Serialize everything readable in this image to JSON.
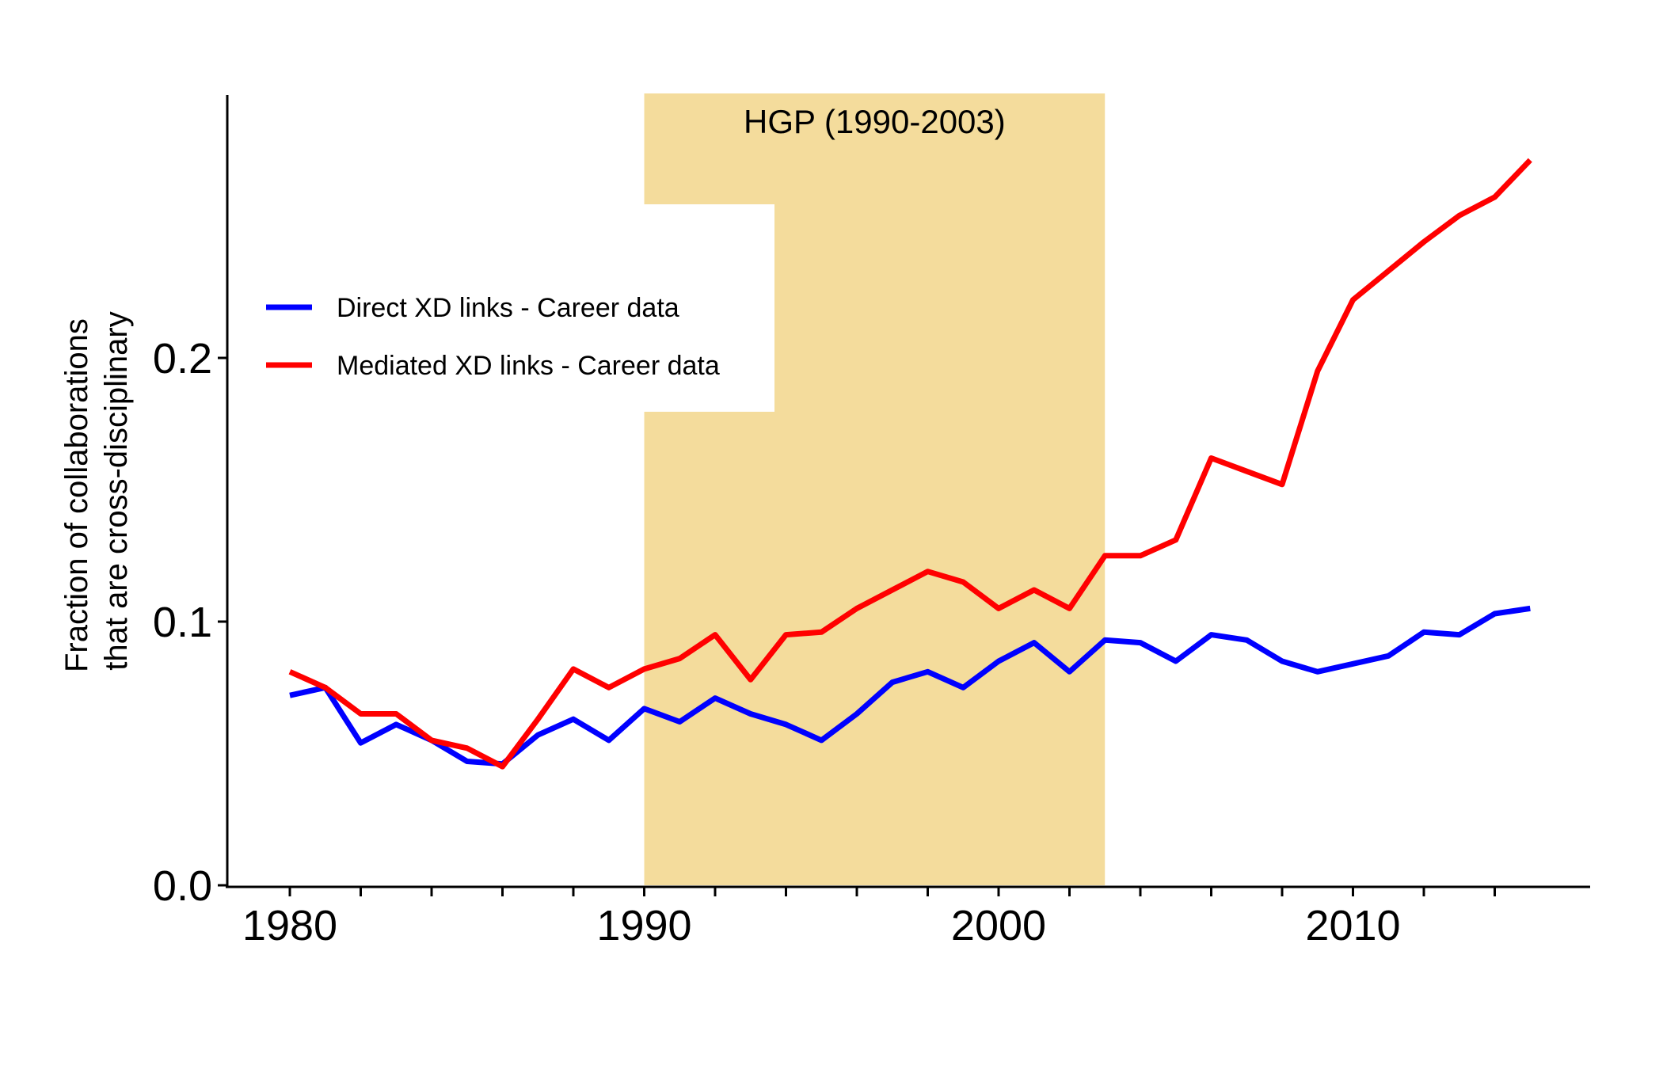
{
  "chart_data": {
    "type": "line",
    "title": "",
    "xlabel": "",
    "ylabel_lines": [
      "Fraction of collaborations",
      "that are cross-disciplinary"
    ],
    "xlim": [
      1978.2,
      2016.7
    ],
    "ylim": [
      0,
      0.3
    ],
    "x_ticks": [
      1980,
      1990,
      2000,
      2010
    ],
    "y_ticks": [
      0.0,
      0.1,
      0.2
    ],
    "y_tick_labels": [
      "0.0",
      "0.1",
      "0.2"
    ],
    "grid": false,
    "legend_position": "left",
    "shaded_region": {
      "x_start": 1990,
      "x_end": 2003,
      "label": "HGP (1990-2003)",
      "color": "#f4dc9c"
    },
    "x": [
      1980,
      1981,
      1982,
      1983,
      1984,
      1985,
      1986,
      1987,
      1988,
      1989,
      1990,
      1991,
      1992,
      1993,
      1994,
      1995,
      1996,
      1997,
      1998,
      1999,
      2000,
      2001,
      2002,
      2003,
      2004,
      2005,
      2006,
      2007,
      2008,
      2009,
      2010,
      2011,
      2012,
      2013,
      2014,
      2015
    ],
    "series": [
      {
        "name": "Direct XD links - Career data",
        "color": "#0000ff",
        "values": [
          0.072,
          0.075,
          0.054,
          0.061,
          0.055,
          0.047,
          0.046,
          0.057,
          0.063,
          0.055,
          0.067,
          0.062,
          0.071,
          0.065,
          0.061,
          0.055,
          0.065,
          0.077,
          0.081,
          0.075,
          0.085,
          0.092,
          0.081,
          0.093,
          0.092,
          0.085,
          0.095,
          0.093,
          0.085,
          0.081,
          0.084,
          0.087,
          0.096,
          0.095,
          0.103,
          0.105
        ]
      },
      {
        "name": "Mediated XD links - Career data",
        "color": "#ff0000",
        "values": [
          0.081,
          0.075,
          0.065,
          0.065,
          0.055,
          0.052,
          0.045,
          0.063,
          0.082,
          0.075,
          0.082,
          0.086,
          0.095,
          0.078,
          0.095,
          0.096,
          0.105,
          0.112,
          0.119,
          0.115,
          0.105,
          0.112,
          0.105,
          0.125,
          0.125,
          0.131,
          0.162,
          0.157,
          0.152,
          0.195,
          0.222,
          0.233,
          0.244,
          0.254,
          0.261,
          0.275
        ]
      }
    ]
  }
}
